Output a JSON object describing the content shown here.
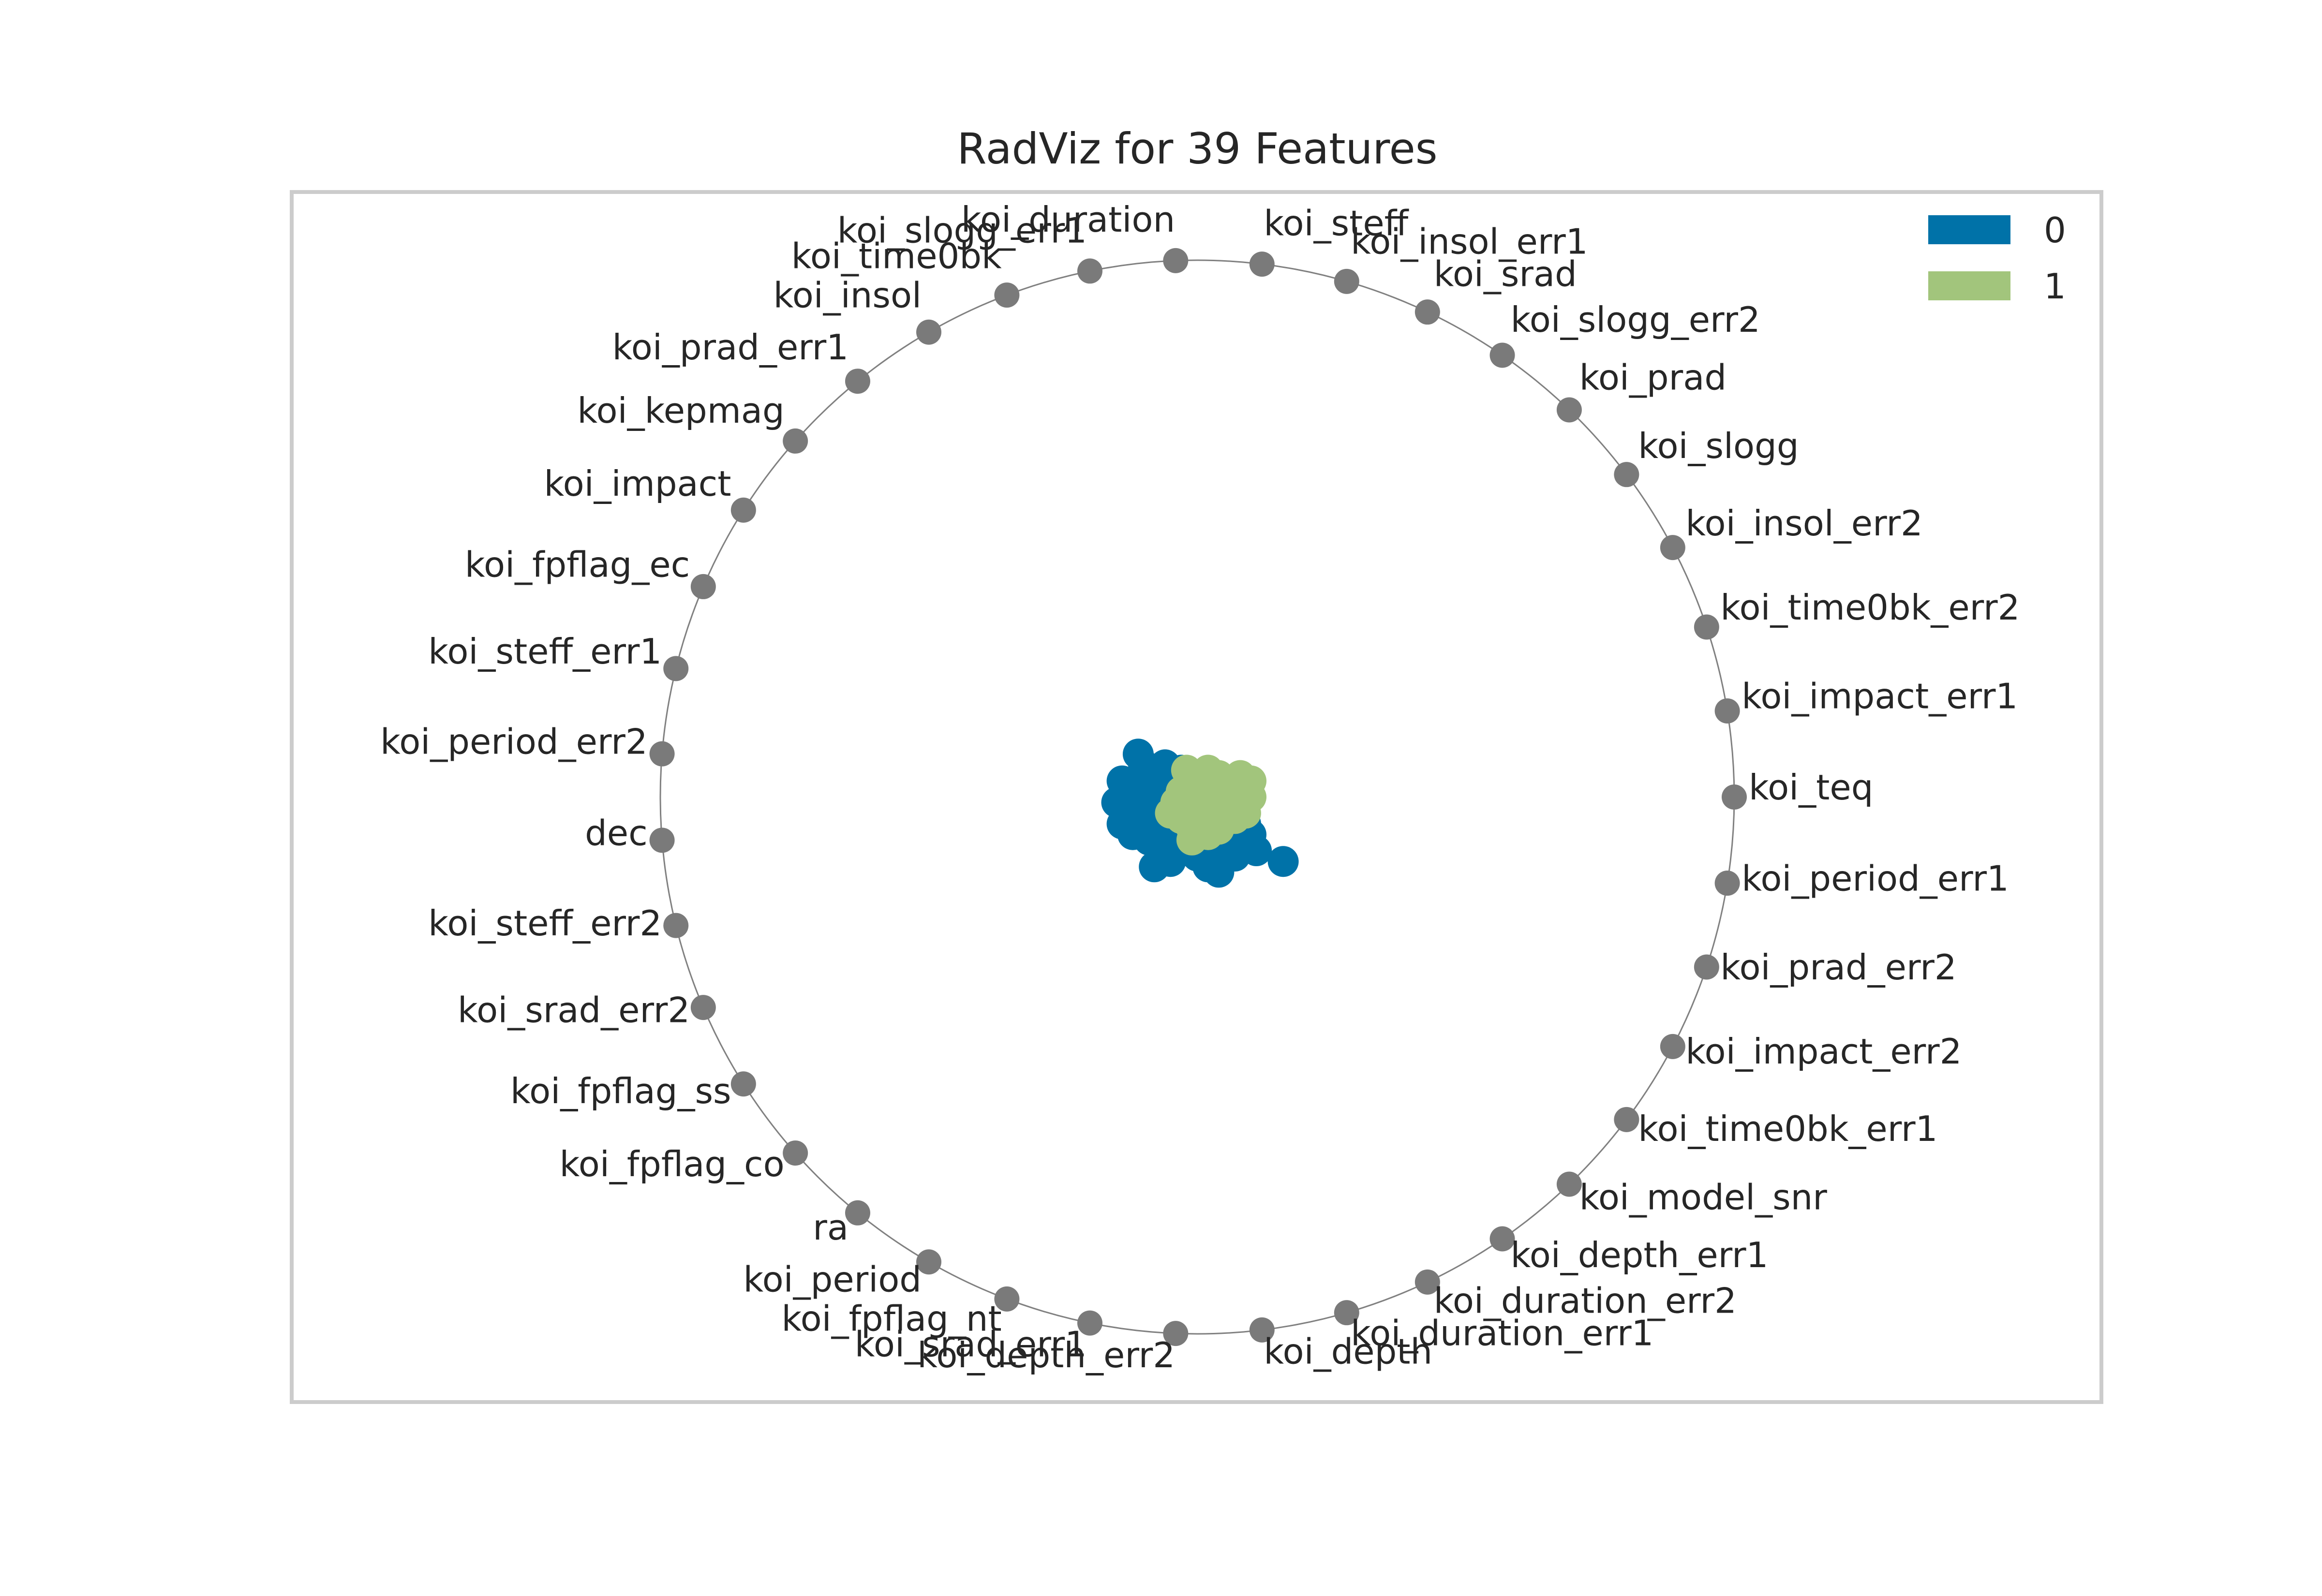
{
  "chart_data": {
    "type": "scatter",
    "subtype": "radviz",
    "title": "RadViz for 39 Features",
    "features": [
      "koi_teq",
      "koi_impact_err1",
      "koi_time0bk_err2",
      "koi_insol_err2",
      "koi_slogg",
      "koi_prad",
      "koi_slogg_err2",
      "koi_srad",
      "koi_insol_err1",
      "koi_steff",
      "koi_duration",
      "koi_slogg_err1",
      "koi_time0bk",
      "koi_insol",
      "koi_prad_err1",
      "koi_kepmag",
      "koi_impact",
      "koi_fpflag_ec",
      "koi_steff_err1",
      "koi_period_err2",
      "dec",
      "koi_steff_err2",
      "koi_srad_err2",
      "koi_fpflag_ss",
      "koi_fpflag_co",
      "ra",
      "koi_period",
      "koi_fpflag_nt",
      "koi_srad_err1",
      "koi_depth_err2",
      "koi_depth",
      "koi_duration_err1",
      "koi_duration_err2",
      "koi_depth_err1",
      "koi_model_snr",
      "koi_time0bk_err1",
      "koi_impact_err2",
      "koi_prad_err2",
      "koi_period_err1"
    ],
    "legend": {
      "placement": "top-right",
      "entries": [
        {
          "name": "0",
          "color": "#0072a8"
        },
        {
          "name": "1",
          "color": "#a2c57c"
        }
      ]
    },
    "circle_color": "#808080",
    "anchor_color": "#7a7a7a",
    "xlim": [
      -1.15,
      1.15
    ],
    "ylim": [
      -1.15,
      1.15
    ],
    "grid": false,
    "series": [
      {
        "name": "0",
        "color": "#0072a8",
        "points": [
          [
            -0.11,
            0.08
          ],
          [
            -0.08,
            0.05
          ],
          [
            -0.06,
            0.06
          ],
          [
            -0.03,
            0.05
          ],
          [
            0.0,
            0.04
          ],
          [
            0.02,
            0.01
          ],
          [
            -0.13,
            0.02
          ],
          [
            -0.12,
            -0.03
          ],
          [
            -0.15,
            -0.01
          ],
          [
            -0.14,
            -0.05
          ],
          [
            -0.12,
            -0.07
          ],
          [
            -0.1,
            -0.04
          ],
          [
            -0.08,
            -0.01
          ],
          [
            -0.06,
            -0.03
          ],
          [
            -0.04,
            -0.06
          ],
          [
            -0.09,
            -0.08
          ],
          [
            -0.06,
            -0.09
          ],
          [
            -0.05,
            -0.12
          ],
          [
            -0.02,
            -0.1
          ],
          [
            0.0,
            -0.11
          ],
          [
            0.03,
            -0.08
          ],
          [
            0.05,
            -0.09
          ],
          [
            0.07,
            -0.07
          ],
          [
            0.09,
            -0.05
          ],
          [
            0.11,
            -0.1
          ],
          [
            0.16,
            -0.12
          ],
          [
            0.07,
            -0.11
          ],
          [
            -0.08,
            -0.13
          ],
          [
            0.03,
            -0.12
          ],
          [
            -0.12,
            0.0
          ],
          [
            -0.1,
            0.03
          ],
          [
            -0.07,
            0.02
          ],
          [
            -0.04,
            0.0
          ],
          [
            -0.02,
            0.03
          ],
          [
            -0.14,
            0.03
          ],
          [
            -0.11,
            -0.01
          ],
          [
            -0.09,
            0.01
          ],
          [
            0.05,
            0.01
          ],
          [
            0.06,
            -0.02
          ],
          [
            0.08,
            -0.03
          ],
          [
            -0.02,
            -0.06
          ],
          [
            0.0,
            -0.07
          ],
          [
            -0.07,
            -0.05
          ],
          [
            -0.13,
            -0.04
          ],
          [
            0.02,
            -0.13
          ],
          [
            0.04,
            -0.14
          ],
          [
            0.1,
            -0.07
          ],
          [
            -0.1,
            0.06
          ],
          [
            -0.05,
            0.05
          ],
          [
            0.01,
            -0.04
          ]
        ]
      },
      {
        "name": "1",
        "color": "#a2c57c",
        "points": [
          [
            -0.02,
            0.05
          ],
          [
            0.0,
            0.04
          ],
          [
            0.02,
            0.05
          ],
          [
            0.04,
            0.04
          ],
          [
            0.06,
            0.03
          ],
          [
            0.08,
            0.04
          ],
          [
            0.09,
            0.02
          ],
          [
            0.1,
            0.0
          ],
          [
            0.07,
            -0.01
          ],
          [
            0.05,
            0.01
          ],
          [
            0.03,
            0.02
          ],
          [
            0.01,
            0.01
          ],
          [
            -0.01,
            0.02
          ],
          [
            -0.03,
            0.01
          ],
          [
            -0.04,
            -0.01
          ],
          [
            -0.05,
            -0.03
          ],
          [
            -0.03,
            -0.04
          ],
          [
            -0.01,
            -0.06
          ],
          [
            0.01,
            -0.04
          ],
          [
            0.03,
            -0.03
          ],
          [
            0.05,
            -0.02
          ],
          [
            0.07,
            -0.04
          ],
          [
            0.04,
            -0.06
          ],
          [
            0.02,
            -0.07
          ],
          [
            -0.01,
            -0.08
          ],
          [
            0.0,
            -0.02
          ],
          [
            0.02,
            -0.01
          ],
          [
            0.06,
            0.0
          ],
          [
            -0.02,
            -0.02
          ],
          [
            0.08,
            -0.02
          ],
          [
            0.1,
            0.03
          ],
          [
            0.09,
            -0.03
          ]
        ]
      }
    ]
  }
}
